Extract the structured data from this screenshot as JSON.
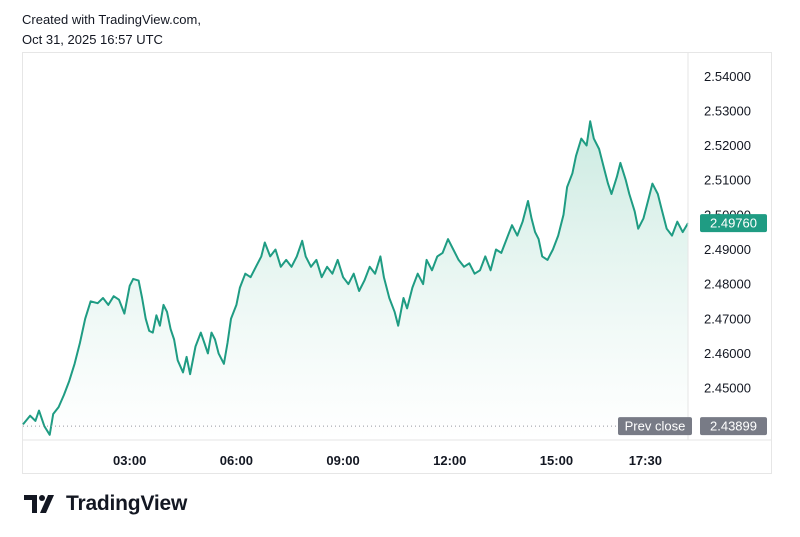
{
  "header": {
    "created_with": "Created with TradingView.com,",
    "timestamp": "Oct 31, 2025 16:57 UTC"
  },
  "brand": {
    "name": "TradingView",
    "logo_icon": "tv-logo-icon"
  },
  "colors": {
    "line": "#1f9c83",
    "fill_top": "#c8e9df",
    "fill_bottom": "#ffffff",
    "last_price_bg": "#1f9c83",
    "prev_close_bg": "#787b86",
    "prev_close_line": "#9598a1"
  },
  "chart_data": {
    "type": "area",
    "title": "",
    "xlabel": "",
    "ylabel": "",
    "x_ticks": [
      "03:00",
      "06:00",
      "09:00",
      "12:00",
      "15:00",
      "17:30"
    ],
    "x_tick_hours": [
      3,
      6,
      9,
      12,
      15,
      17.5
    ],
    "y_ticks": [
      "2.45000",
      "2.46000",
      "2.47000",
      "2.48000",
      "2.49000",
      "2.50000",
      "2.51000",
      "2.52000",
      "2.53000",
      "2.54000"
    ],
    "ylim": [
      2.435,
      2.547
    ],
    "xlim_hours": [
      0.0,
      18.7
    ],
    "grid": false,
    "last_price": 2.4976,
    "last_price_label": "2.49760",
    "prev_close": 2.43899,
    "prev_close_label": "2.43899",
    "prev_close_text": "Prev close",
    "series": [
      {
        "points": [
          [
            0.0,
            2.4395
          ],
          [
            0.2,
            2.442
          ],
          [
            0.35,
            2.4405
          ],
          [
            0.45,
            2.4435
          ],
          [
            0.6,
            2.439
          ],
          [
            0.75,
            2.4365
          ],
          [
            0.85,
            2.4425
          ],
          [
            1.0,
            2.4445
          ],
          [
            1.15,
            2.448
          ],
          [
            1.3,
            2.452
          ],
          [
            1.45,
            2.457
          ],
          [
            1.6,
            2.463
          ],
          [
            1.75,
            2.47
          ],
          [
            1.9,
            2.475
          ],
          [
            2.1,
            2.4745
          ],
          [
            2.25,
            2.476
          ],
          [
            2.4,
            2.474
          ],
          [
            2.55,
            2.4765
          ],
          [
            2.7,
            2.4755
          ],
          [
            2.85,
            2.4715
          ],
          [
            3.0,
            2.4795
          ],
          [
            3.1,
            2.4815
          ],
          [
            3.25,
            2.481
          ],
          [
            3.35,
            2.476
          ],
          [
            3.45,
            2.47
          ],
          [
            3.55,
            2.4665
          ],
          [
            3.65,
            2.466
          ],
          [
            3.75,
            2.471
          ],
          [
            3.85,
            2.468
          ],
          [
            3.95,
            2.474
          ],
          [
            4.05,
            2.472
          ],
          [
            4.15,
            2.467
          ],
          [
            4.25,
            2.464
          ],
          [
            4.35,
            2.458
          ],
          [
            4.5,
            2.4545
          ],
          [
            4.6,
            2.459
          ],
          [
            4.7,
            2.454
          ],
          [
            4.85,
            2.462
          ],
          [
            5.0,
            2.466
          ],
          [
            5.1,
            2.463
          ],
          [
            5.2,
            2.46
          ],
          [
            5.3,
            2.466
          ],
          [
            5.4,
            2.464
          ],
          [
            5.5,
            2.46
          ],
          [
            5.65,
            2.457
          ],
          [
            5.75,
            2.463
          ],
          [
            5.85,
            2.47
          ],
          [
            6.0,
            2.474
          ],
          [
            6.1,
            2.479
          ],
          [
            6.25,
            2.483
          ],
          [
            6.4,
            2.482
          ],
          [
            6.55,
            2.485
          ],
          [
            6.7,
            2.488
          ],
          [
            6.8,
            2.492
          ],
          [
            6.95,
            2.488
          ],
          [
            7.1,
            2.49
          ],
          [
            7.25,
            2.485
          ],
          [
            7.4,
            2.487
          ],
          [
            7.55,
            2.485
          ],
          [
            7.7,
            2.488
          ],
          [
            7.85,
            2.4925
          ],
          [
            7.95,
            2.488
          ],
          [
            8.1,
            2.485
          ],
          [
            8.25,
            2.487
          ],
          [
            8.4,
            2.482
          ],
          [
            8.55,
            2.485
          ],
          [
            8.7,
            2.483
          ],
          [
            8.85,
            2.487
          ],
          [
            9.0,
            2.482
          ],
          [
            9.15,
            2.48
          ],
          [
            9.3,
            2.483
          ],
          [
            9.45,
            2.478
          ],
          [
            9.6,
            2.481
          ],
          [
            9.75,
            2.485
          ],
          [
            9.9,
            2.483
          ],
          [
            10.05,
            2.488
          ],
          [
            10.15,
            2.482
          ],
          [
            10.3,
            2.476
          ],
          [
            10.45,
            2.472
          ],
          [
            10.55,
            2.468
          ],
          [
            10.7,
            2.476
          ],
          [
            10.8,
            2.473
          ],
          [
            10.95,
            2.479
          ],
          [
            11.1,
            2.483
          ],
          [
            11.25,
            2.48
          ],
          [
            11.35,
            2.487
          ],
          [
            11.5,
            2.484
          ],
          [
            11.65,
            2.488
          ],
          [
            11.8,
            2.489
          ],
          [
            11.95,
            2.493
          ],
          [
            12.1,
            2.49
          ],
          [
            12.25,
            2.487
          ],
          [
            12.4,
            2.485
          ],
          [
            12.55,
            2.486
          ],
          [
            12.7,
            2.483
          ],
          [
            12.85,
            2.484
          ],
          [
            13.0,
            2.488
          ],
          [
            13.15,
            2.484
          ],
          [
            13.3,
            2.49
          ],
          [
            13.45,
            2.489
          ],
          [
            13.6,
            2.493
          ],
          [
            13.75,
            2.497
          ],
          [
            13.9,
            2.494
          ],
          [
            14.05,
            2.498
          ],
          [
            14.2,
            2.504
          ],
          [
            14.3,
            2.499
          ],
          [
            14.4,
            2.495
          ],
          [
            14.5,
            2.493
          ],
          [
            14.6,
            2.488
          ],
          [
            14.75,
            2.487
          ],
          [
            14.9,
            2.49
          ],
          [
            15.05,
            2.494
          ],
          [
            15.2,
            2.5
          ],
          [
            15.3,
            2.508
          ],
          [
            15.45,
            2.512
          ],
          [
            15.55,
            2.517
          ],
          [
            15.7,
            2.522
          ],
          [
            15.85,
            2.52
          ],
          [
            15.95,
            2.527
          ],
          [
            16.05,
            2.522
          ],
          [
            16.2,
            2.519
          ],
          [
            16.35,
            2.513
          ],
          [
            16.45,
            2.509
          ],
          [
            16.55,
            2.506
          ],
          [
            16.7,
            2.511
          ],
          [
            16.8,
            2.515
          ],
          [
            16.95,
            2.51
          ],
          [
            17.05,
            2.506
          ],
          [
            17.2,
            2.501
          ],
          [
            17.3,
            2.496
          ],
          [
            17.45,
            2.499
          ],
          [
            17.6,
            2.505
          ],
          [
            17.7,
            2.509
          ],
          [
            17.85,
            2.506
          ],
          [
            17.95,
            2.502
          ],
          [
            18.1,
            2.496
          ],
          [
            18.25,
            2.494
          ],
          [
            18.4,
            2.498
          ],
          [
            18.55,
            2.495
          ],
          [
            18.7,
            2.4976
          ]
        ]
      }
    ]
  }
}
